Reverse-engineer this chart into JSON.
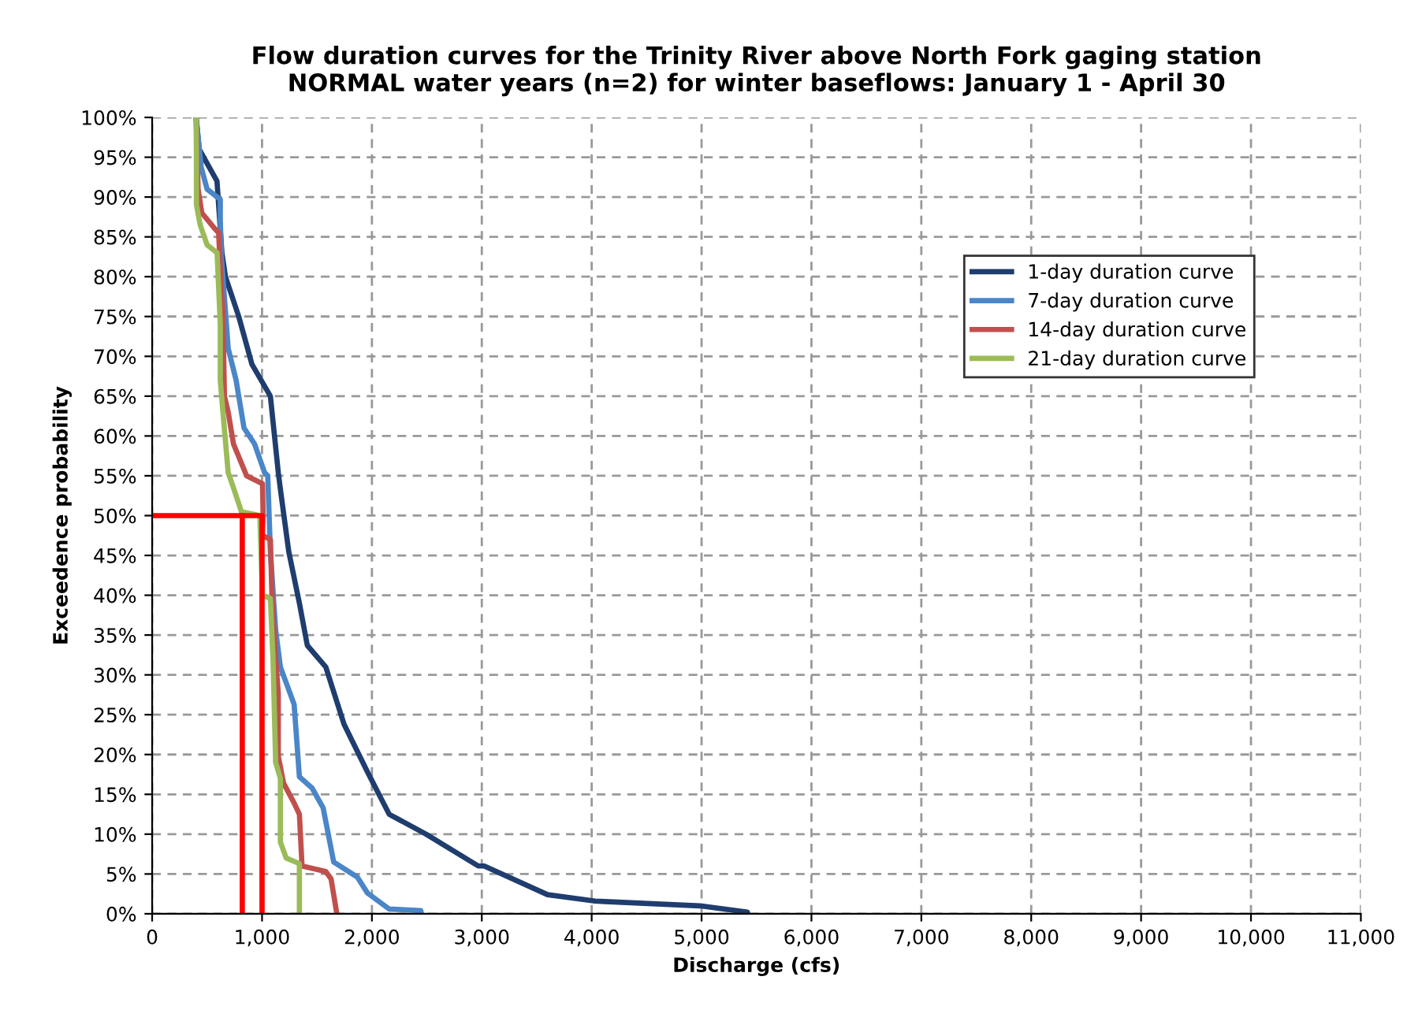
{
  "chart_data": {
    "type": "line",
    "title": "Flow duration curves for the Trinity River above North Fork gaging station\nNORMAL water years (n=2) for winter baseflows: January 1 - April 30",
    "xlabel": "Discharge (cfs)",
    "ylabel": "Exceedence probability",
    "xlim": [
      0,
      11000
    ],
    "xticks": [
      0,
      {
        "value": 1000,
        "label": "1,000"
      },
      {
        "value": 2000,
        "label": "2,000"
      },
      {
        "value": 3000,
        "label": "3,000"
      },
      {
        "value": 4000,
        "label": "4,000"
      },
      {
        "value": 5000,
        "label": "5,000"
      },
      {
        "value": 6000,
        "label": "6,000"
      },
      {
        "value": 7000,
        "label": "7,000"
      },
      {
        "value": 8000,
        "label": "8,000"
      },
      {
        "value": 9000,
        "label": "9,000"
      },
      {
        "value": 10000,
        "label": "10,000"
      },
      {
        "value": 11000,
        "label": "11,000"
      }
    ],
    "ylim": [
      0,
      100
    ],
    "yticks": [
      {
        "value": 0,
        "label": "0%"
      },
      {
        "value": 5,
        "label": "5%"
      },
      {
        "value": 10,
        "label": "10%"
      },
      {
        "value": 15,
        "label": "15%"
      },
      {
        "value": 20,
        "label": "20%"
      },
      {
        "value": 25,
        "label": "25%"
      },
      {
        "value": 30,
        "label": "30%"
      },
      {
        "value": 35,
        "label": "35%"
      },
      {
        "value": 40,
        "label": "40%"
      },
      {
        "value": 45,
        "label": "45%"
      },
      {
        "value": 50,
        "label": "50%"
      },
      {
        "value": 55,
        "label": "55%"
      },
      {
        "value": 60,
        "label": "60%"
      },
      {
        "value": 65,
        "label": "65%"
      },
      {
        "value": 70,
        "label": "70%"
      },
      {
        "value": 75,
        "label": "75%"
      },
      {
        "value": 80,
        "label": "80%"
      },
      {
        "value": 85,
        "label": "85%"
      },
      {
        "value": 90,
        "label": "90%"
      },
      {
        "value": 95,
        "label": "95%"
      },
      {
        "value": 100,
        "label": "100%"
      }
    ],
    "grid": true,
    "legend": "right",
    "marker": "none",
    "line_style": "solid",
    "series": [
      {
        "name": "1-day duration curve",
        "color": "#1f3d6e",
        "x": [
          400,
          428,
          590,
          635,
          667,
          788,
          908,
          1076,
          1148,
          1170,
          1243,
          1340,
          1412,
          1580,
          1746,
          1960,
          2157,
          2493,
          2968,
          3022,
          3598,
          4030,
          4986,
          5418,
          5420
        ],
        "values": [
          100,
          96,
          92,
          83,
          80,
          75,
          69,
          65,
          55.4,
          53,
          45.5,
          39,
          33.7,
          31,
          23.8,
          17.8,
          12.5,
          10,
          6,
          6,
          2.4,
          1.6,
          1,
          0.2,
          0
        ]
      },
      {
        "name": "7-day duration curve",
        "color": "#4a86c8",
        "x": [
          400,
          447,
          500,
          620,
          620,
          630,
          692,
          764,
          836,
          932,
          1023,
          1052,
          1076,
          1124,
          1167,
          1292,
          1340,
          1455,
          1556,
          1652,
          1868,
          1960,
          2157,
          2445,
          2450
        ],
        "values": [
          100,
          93.7,
          91,
          89.7,
          87,
          82.6,
          71,
          67,
          61,
          59,
          55.4,
          55,
          45.5,
          35.6,
          31,
          26.3,
          17.2,
          15.8,
          13.3,
          6.5,
          4.6,
          2.6,
          0.6,
          0.4,
          0
        ]
      },
      {
        "name": "14-day duration curve",
        "color": "#c0504d",
        "x": [
          400,
          418,
          452,
          572,
          605,
          620,
          644,
          658,
          692,
          740,
          860,
          1004,
          1010,
          1004,
          1076,
          1090,
          1124,
          1148,
          1148,
          1196,
          1292,
          1340,
          1364,
          1580,
          1628,
          1652,
          1676,
          1680
        ],
        "values": [
          100,
          91,
          88,
          86,
          85.5,
          81,
          75,
          65,
          63,
          59,
          55,
          54,
          50,
          47.5,
          47,
          40,
          32,
          27.7,
          19.8,
          16.4,
          13.9,
          12.5,
          6,
          5.3,
          4.4,
          2.4,
          0.4,
          0
        ]
      },
      {
        "name": "21-day duration curve",
        "color": "#9bbb59",
        "x": [
          400,
          403,
          403,
          437,
          500,
          591,
          620,
          620,
          644,
          692,
          740,
          812,
          980,
          1004,
          1076,
          1100,
          1124,
          1167,
          1167,
          1220,
          1340,
          1340
        ],
        "values": [
          100,
          95,
          89,
          86.5,
          84,
          83,
          74,
          67,
          63,
          55.4,
          53.5,
          50.5,
          50,
          40,
          39.6,
          32,
          19,
          17,
          9,
          7,
          6.3,
          0
        ]
      },
      {
        "color": "#ff0000",
        "x": [
          0,
          1000,
          1000
        ],
        "values": [
          50,
          50,
          0
        ]
      },
      {
        "color": "#ff0000",
        "x": [
          820,
          820
        ],
        "values": [
          50,
          0
        ]
      }
    ]
  }
}
